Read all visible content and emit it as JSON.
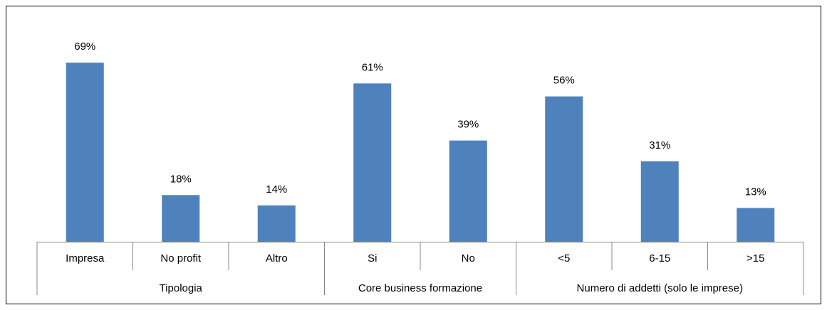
{
  "chart_data": {
    "type": "bar",
    "groups": [
      {
        "label": "Tipologia",
        "categories": [
          "Impresa",
          "No profit",
          "Altro"
        ]
      },
      {
        "label": "Core business formazione",
        "categories": [
          "Si",
          "No"
        ]
      },
      {
        "label": "Numero di addetti (solo le imprese)",
        "categories": [
          "<5",
          "6-15",
          ">15"
        ]
      }
    ],
    "values": [
      69,
      18,
      14,
      61,
      39,
      56,
      31,
      13
    ],
    "value_labels": [
      "69%",
      "18%",
      "14%",
      "61%",
      "39%",
      "56%",
      "31%",
      "13%"
    ],
    "color": "#4f81bd"
  }
}
